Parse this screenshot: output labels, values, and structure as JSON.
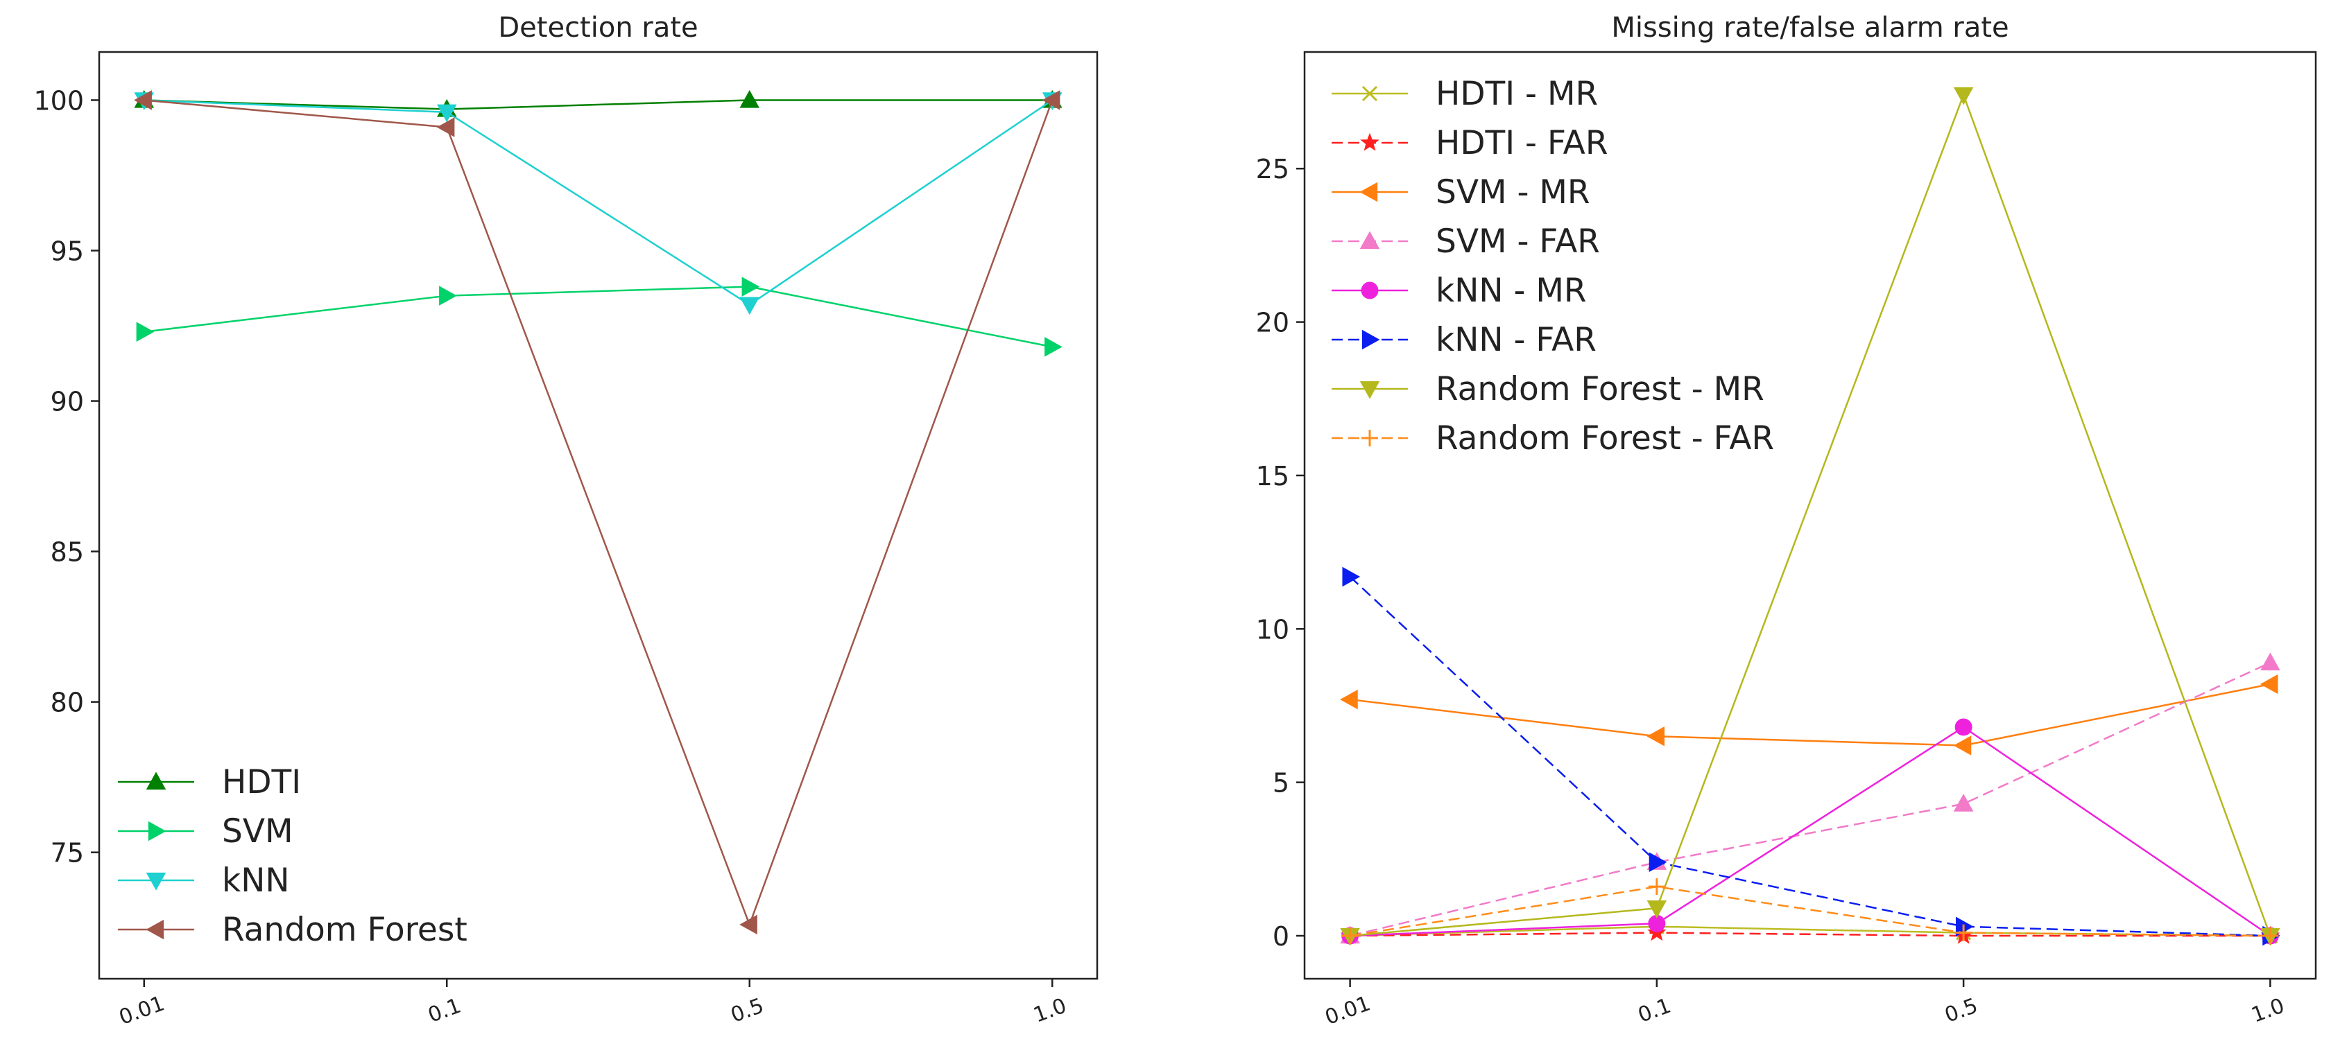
{
  "chart_data": [
    {
      "type": "line",
      "title": "Detection rate",
      "xlabel": "",
      "ylabel": "",
      "categories": [
        "0.01",
        "0.1",
        "0.5",
        "1.0"
      ],
      "ylim": [
        70.8,
        101.6
      ],
      "yticks": [
        "75",
        "80",
        "85",
        "90",
        "95",
        "100"
      ],
      "legend_position": "lower-left",
      "series": [
        {
          "name": "HDTI",
          "values": [
            100,
            99.7,
            100,
            100
          ],
          "color": "#008000",
          "marker": "triangle-up",
          "dash": "solid"
        },
        {
          "name": "SVM",
          "values": [
            92.3,
            93.5,
            93.8,
            91.8
          ],
          "color": "#00d26a",
          "marker": "triangle-right",
          "dash": "solid"
        },
        {
          "name": "kNN",
          "values": [
            100,
            99.6,
            93.2,
            100
          ],
          "color": "#1ed0d0",
          "marker": "triangle-down",
          "dash": "solid"
        },
        {
          "name": "Random Forest",
          "values": [
            100,
            99.1,
            72.6,
            100
          ],
          "color": "#a0574a",
          "marker": "triangle-left",
          "dash": "solid"
        }
      ]
    },
    {
      "type": "line",
      "title": "Missing rate/false alarm rate",
      "xlabel": "",
      "ylabel": "",
      "categories": [
        "0.01",
        "0.1",
        "0.5",
        "1.0"
      ],
      "ylim": [
        -1.4,
        28.8
      ],
      "yticks": [
        "0",
        "5",
        "10",
        "15",
        "20",
        "25"
      ],
      "legend_position": "top-left",
      "series": [
        {
          "name": "HDTI - MR",
          "values": [
            0.0,
            0.3,
            0.1,
            0.0
          ],
          "color": "#bcbd22",
          "marker": "x",
          "dash": "solid"
        },
        {
          "name": "HDTI - FAR",
          "values": [
            0.0,
            0.1,
            0.0,
            0.0
          ],
          "color": "#ff2020",
          "marker": "star",
          "dash": "dashed"
        },
        {
          "name": "SVM - MR",
          "values": [
            7.7,
            6.5,
            6.2,
            8.2
          ],
          "color": "#ff7f0e",
          "marker": "triangle-left",
          "dash": "solid"
        },
        {
          "name": "SVM - FAR",
          "values": [
            0.0,
            2.4,
            4.3,
            8.9
          ],
          "color": "#f27ac8",
          "marker": "triangle-up",
          "dash": "dashed"
        },
        {
          "name": "kNN - MR",
          "values": [
            0.0,
            0.4,
            6.8,
            0.0
          ],
          "color": "#ee22dd",
          "marker": "circle",
          "dash": "solid"
        },
        {
          "name": "kNN - FAR",
          "values": [
            11.7,
            2.4,
            0.3,
            0.0
          ],
          "color": "#0a1ef0",
          "marker": "triangle-right",
          "dash": "dashed"
        },
        {
          "name": "Random Forest - MR",
          "values": [
            0.0,
            0.9,
            27.4,
            0.0
          ],
          "color": "#b4b81c",
          "marker": "triangle-down",
          "dash": "solid"
        },
        {
          "name": "Random Forest - FAR",
          "values": [
            0.0,
            1.6,
            0.1,
            0.0
          ],
          "color": "#ff8c1a",
          "marker": "plus",
          "dash": "dashed"
        }
      ]
    }
  ]
}
